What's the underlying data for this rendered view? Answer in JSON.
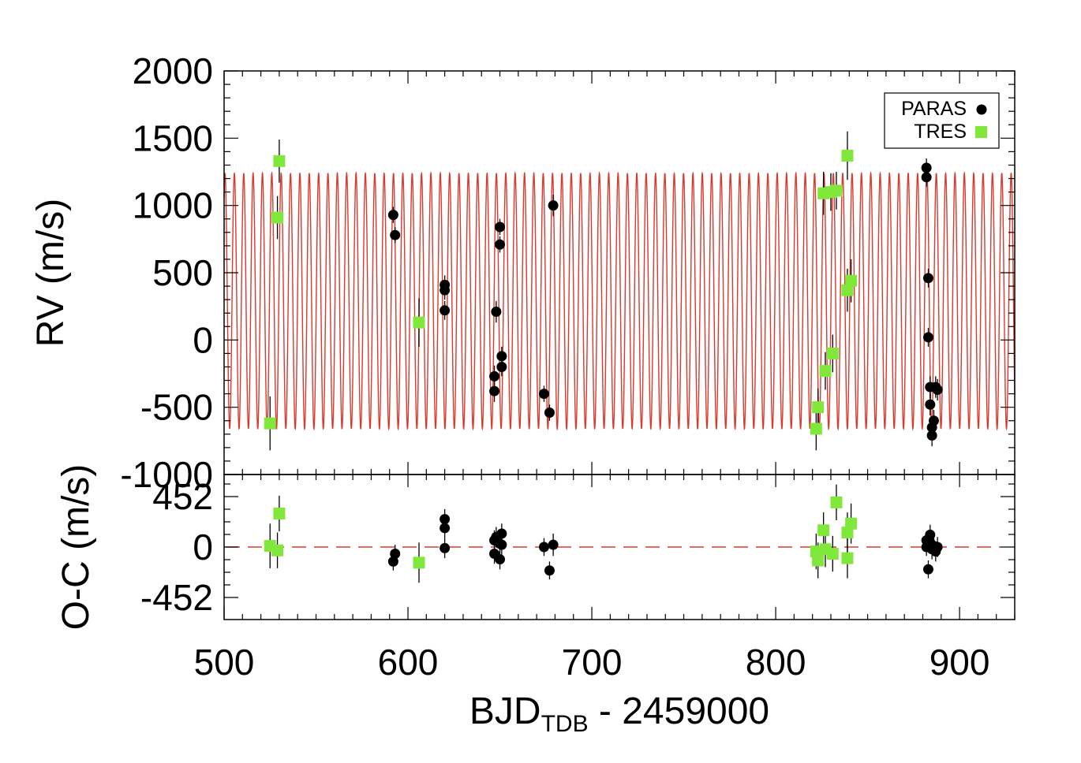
{
  "chart_data": {
    "type": "scatter",
    "panels": [
      {
        "id": "rv",
        "ylabel": "RV (m/s)",
        "ylim": [
          -1000,
          2000
        ],
        "yticks": [
          2000,
          1500,
          1000,
          500,
          0,
          -500,
          -1000
        ],
        "model": {
          "type": "line",
          "color": "#d83a2e",
          "period_days": 5.09,
          "max": 1240,
          "min": -660
        },
        "series": [
          {
            "name": "PARAS",
            "marker": "circle",
            "color": "#000000",
            "points": [
              {
                "x": 592,
                "y": 930,
                "err": 60
              },
              {
                "x": 593,
                "y": 780,
                "err": 60
              },
              {
                "x": 620,
                "y": 410,
                "err": 70
              },
              {
                "x": 620,
                "y": 370,
                "err": 70
              },
              {
                "x": 620,
                "y": 220,
                "err": 70
              },
              {
                "x": 647,
                "y": -270,
                "err": 80
              },
              {
                "x": 647,
                "y": -380,
                "err": 80
              },
              {
                "x": 648,
                "y": 210,
                "err": 80
              },
              {
                "x": 650,
                "y": 840,
                "err": 60
              },
              {
                "x": 650,
                "y": 710,
                "err": 60
              },
              {
                "x": 651,
                "y": -120,
                "err": 70
              },
              {
                "x": 651,
                "y": -200,
                "err": 70
              },
              {
                "x": 674,
                "y": -400,
                "err": 60
              },
              {
                "x": 677,
                "y": -540,
                "err": 60
              },
              {
                "x": 679,
                "y": 1000,
                "err": 80
              },
              {
                "x": 882,
                "y": 1280,
                "err": 70
              },
              {
                "x": 882,
                "y": 1210,
                "err": 70
              },
              {
                "x": 883,
                "y": 460,
                "err": 70
              },
              {
                "x": 883,
                "y": 20,
                "err": 70
              },
              {
                "x": 884,
                "y": -350,
                "err": 80
              },
              {
                "x": 884,
                "y": -480,
                "err": 80
              },
              {
                "x": 885,
                "y": -650,
                "err": 80
              },
              {
                "x": 885,
                "y": -710,
                "err": 80
              },
              {
                "x": 886,
                "y": -600,
                "err": 80
              },
              {
                "x": 887,
                "y": -350,
                "err": 80
              },
              {
                "x": 888,
                "y": -370,
                "err": 80
              }
            ]
          },
          {
            "name": "TRES",
            "marker": "square",
            "color": "#80e83a",
            "points": [
              {
                "x": 525,
                "y": -620,
                "err": 200
              },
              {
                "x": 529,
                "y": 910,
                "err": 160
              },
              {
                "x": 530,
                "y": 1330,
                "err": 160
              },
              {
                "x": 606,
                "y": 130,
                "err": 180
              },
              {
                "x": 822,
                "y": -660,
                "err": 160
              },
              {
                "x": 823,
                "y": -500,
                "err": 140
              },
              {
                "x": 826,
                "y": 1090,
                "err": 160
              },
              {
                "x": 827,
                "y": -230,
                "err": 140
              },
              {
                "x": 830,
                "y": 1100,
                "err": 140
              },
              {
                "x": 831,
                "y": -100,
                "err": 140
              },
              {
                "x": 833,
                "y": 1110,
                "err": 140
              },
              {
                "x": 839,
                "y": 1370,
                "err": 180
              },
              {
                "x": 839,
                "y": 370,
                "err": 160
              },
              {
                "x": 841,
                "y": 440,
                "err": 160
              }
            ]
          }
        ]
      },
      {
        "id": "oc",
        "ylabel": "O-C (m/s)",
        "ylim": [
          -650,
          650
        ],
        "yticks": [
          452,
          0,
          -452
        ],
        "reference_line": {
          "y": 0,
          "style": "dashed",
          "color": "#d83a2e"
        },
        "series": [
          {
            "name": "PARAS",
            "marker": "circle",
            "color": "#000000",
            "points": [
              {
                "x": 592,
                "y": -130,
                "err": 80
              },
              {
                "x": 593,
                "y": -60,
                "err": 80
              },
              {
                "x": 620,
                "y": 250,
                "err": 90
              },
              {
                "x": 620,
                "y": 170,
                "err": 90
              },
              {
                "x": 620,
                "y": -10,
                "err": 90
              },
              {
                "x": 647,
                "y": 60,
                "err": 90
              },
              {
                "x": 647,
                "y": -60,
                "err": 90
              },
              {
                "x": 648,
                "y": 90,
                "err": 90
              },
              {
                "x": 650,
                "y": 30,
                "err": 90
              },
              {
                "x": 650,
                "y": -110,
                "err": 90
              },
              {
                "x": 651,
                "y": 120,
                "err": 90
              },
              {
                "x": 651,
                "y": 20,
                "err": 90
              },
              {
                "x": 674,
                "y": 0,
                "err": 80
              },
              {
                "x": 677,
                "y": -210,
                "err": 80
              },
              {
                "x": 679,
                "y": 20,
                "err": 100
              },
              {
                "x": 882,
                "y": 60,
                "err": 80
              },
              {
                "x": 882,
                "y": 0,
                "err": 80
              },
              {
                "x": 883,
                "y": -200,
                "err": 80
              },
              {
                "x": 884,
                "y": 110,
                "err": 90
              },
              {
                "x": 884,
                "y": 40,
                "err": 90
              },
              {
                "x": 885,
                "y": -20,
                "err": 90
              },
              {
                "x": 886,
                "y": 10,
                "err": 90
              },
              {
                "x": 887,
                "y": -40,
                "err": 90
              },
              {
                "x": 888,
                "y": 0,
                "err": 90
              }
            ]
          },
          {
            "name": "TRES",
            "marker": "square",
            "color": "#80e83a",
            "points": [
              {
                "x": 525,
                "y": 10,
                "err": 200
              },
              {
                "x": 529,
                "y": -30,
                "err": 160
              },
              {
                "x": 530,
                "y": 300,
                "err": 160
              },
              {
                "x": 606,
                "y": -140,
                "err": 180
              },
              {
                "x": 822,
                "y": -40,
                "err": 160
              },
              {
                "x": 823,
                "y": -120,
                "err": 160
              },
              {
                "x": 826,
                "y": 150,
                "err": 160
              },
              {
                "x": 827,
                "y": -20,
                "err": 160
              },
              {
                "x": 831,
                "y": -60,
                "err": 160
              },
              {
                "x": 833,
                "y": 400,
                "err": 160
              },
              {
                "x": 839,
                "y": -100,
                "err": 180
              },
              {
                "x": 839,
                "y": 130,
                "err": 180
              },
              {
                "x": 841,
                "y": 210,
                "err": 180
              }
            ]
          }
        ]
      }
    ],
    "xlim": [
      500,
      930
    ],
    "xticks": [
      500,
      600,
      700,
      800,
      900
    ],
    "xlabel_main": "BJD",
    "xlabel_sub": "TDB",
    "xlabel_suffix": " - 2459000",
    "legend": {
      "placement": "top-right",
      "entries": [
        {
          "label": "PARAS",
          "marker": "circle",
          "color": "#000000"
        },
        {
          "label": "TRES",
          "marker": "square",
          "color": "#80e83a"
        }
      ]
    }
  }
}
